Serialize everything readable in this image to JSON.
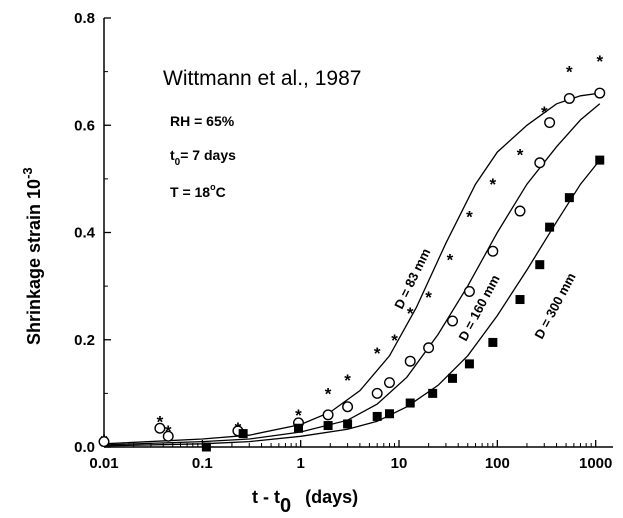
{
  "chart_data": {
    "type": "scatter",
    "title": "Wittmann et al., 1987",
    "annotations": {
      "rh": "RH = 65%",
      "t0_prefix": "t",
      "t0_sub": "0",
      "t0_suffix": "= 7 days",
      "temp_prefix": "T = 18",
      "temp_sup": "o",
      "temp_suffix": "C"
    },
    "xlabel": {
      "main": "t -   t",
      "sub": "0",
      "unit": "(days)"
    },
    "ylabel": {
      "main": "Shrinkage strain 10",
      "sup": "-3"
    },
    "x_scale": "log",
    "xlim": [
      0.01,
      1500
    ],
    "ylim": [
      0,
      0.8
    ],
    "x_ticks": [
      {
        "value": 0.01,
        "label": "0.01"
      },
      {
        "value": 0.1,
        "label": "0.1"
      },
      {
        "value": 1,
        "label": "1"
      },
      {
        "value": 10,
        "label": "10"
      },
      {
        "value": 100,
        "label": "100"
      },
      {
        "value": 1000,
        "label": "1000"
      }
    ],
    "y_ticks": [
      {
        "value": 0,
        "label": "0.0"
      },
      {
        "value": 0.2,
        "label": "0.2"
      },
      {
        "value": 0.4,
        "label": "0.4"
      },
      {
        "value": 0.6,
        "label": "0.6"
      },
      {
        "value": 0.8,
        "label": "0.8"
      }
    ],
    "grid": false,
    "series": [
      {
        "name": "D = 83 mm",
        "marker": "star",
        "points": [
          [
            0.01,
            0.013
          ],
          [
            0.037,
            0.048
          ],
          [
            0.045,
            0.03
          ],
          [
            0.23,
            0.035
          ],
          [
            0.95,
            0.06
          ],
          [
            1.9,
            0.1
          ],
          [
            3,
            0.125
          ],
          [
            6,
            0.175
          ],
          [
            9,
            0.2
          ],
          [
            13,
            0.25
          ],
          [
            20,
            0.28
          ],
          [
            33,
            0.35
          ],
          [
            52,
            0.43
          ],
          [
            90,
            0.49
          ],
          [
            170,
            0.545
          ],
          [
            300,
            0.625
          ],
          [
            540,
            0.7
          ],
          [
            1100,
            0.72
          ]
        ],
        "curve": [
          [
            0.01,
            0.006
          ],
          [
            0.1,
            0.015
          ],
          [
            0.3,
            0.022
          ],
          [
            1,
            0.042
          ],
          [
            2,
            0.065
          ],
          [
            4,
            0.105
          ],
          [
            8,
            0.17
          ],
          [
            15,
            0.26
          ],
          [
            30,
            0.38
          ],
          [
            60,
            0.49
          ],
          [
            100,
            0.55
          ],
          [
            200,
            0.6
          ],
          [
            400,
            0.64
          ],
          [
            700,
            0.655
          ],
          [
            1100,
            0.66
          ]
        ]
      },
      {
        "name": "D = 160 mm",
        "marker": "circle",
        "points": [
          [
            0.01,
            0.01
          ],
          [
            0.037,
            0.035
          ],
          [
            0.045,
            0.02
          ],
          [
            0.23,
            0.03
          ],
          [
            0.95,
            0.045
          ],
          [
            1.9,
            0.06
          ],
          [
            3,
            0.075
          ],
          [
            6,
            0.1
          ],
          [
            8,
            0.12
          ],
          [
            13,
            0.16
          ],
          [
            20,
            0.185
          ],
          [
            35,
            0.235
          ],
          [
            52,
            0.29
          ],
          [
            90,
            0.365
          ],
          [
            170,
            0.44
          ],
          [
            270,
            0.53
          ],
          [
            340,
            0.605
          ],
          [
            540,
            0.65
          ],
          [
            1100,
            0.66
          ]
        ],
        "curve": [
          [
            0.01,
            0.004
          ],
          [
            0.1,
            0.01
          ],
          [
            0.3,
            0.015
          ],
          [
            1,
            0.028
          ],
          [
            3,
            0.05
          ],
          [
            6,
            0.08
          ],
          [
            12,
            0.13
          ],
          [
            25,
            0.21
          ],
          [
            50,
            0.3
          ],
          [
            100,
            0.4
          ],
          [
            200,
            0.49
          ],
          [
            400,
            0.56
          ],
          [
            700,
            0.61
          ],
          [
            1100,
            0.64
          ]
        ]
      },
      {
        "name": "D = 300 mm",
        "marker": "square",
        "points": [
          [
            0.11,
            0.0
          ],
          [
            0.26,
            0.025
          ],
          [
            0.95,
            0.035
          ],
          [
            1.9,
            0.04
          ],
          [
            3,
            0.043
          ],
          [
            6,
            0.057
          ],
          [
            8,
            0.062
          ],
          [
            13,
            0.082
          ],
          [
            22,
            0.1
          ],
          [
            35,
            0.128
          ],
          [
            52,
            0.155
          ],
          [
            90,
            0.195
          ],
          [
            170,
            0.275
          ],
          [
            270,
            0.34
          ],
          [
            340,
            0.41
          ],
          [
            540,
            0.465
          ],
          [
            1100,
            0.535
          ]
        ],
        "curve": [
          [
            0.01,
            0.002
          ],
          [
            0.1,
            0.006
          ],
          [
            0.3,
            0.01
          ],
          [
            1,
            0.02
          ],
          [
            3,
            0.033
          ],
          [
            6,
            0.048
          ],
          [
            12,
            0.075
          ],
          [
            25,
            0.115
          ],
          [
            50,
            0.17
          ],
          [
            100,
            0.245
          ],
          [
            200,
            0.33
          ],
          [
            400,
            0.42
          ],
          [
            700,
            0.49
          ],
          [
            1100,
            0.535
          ]
        ]
      }
    ]
  }
}
